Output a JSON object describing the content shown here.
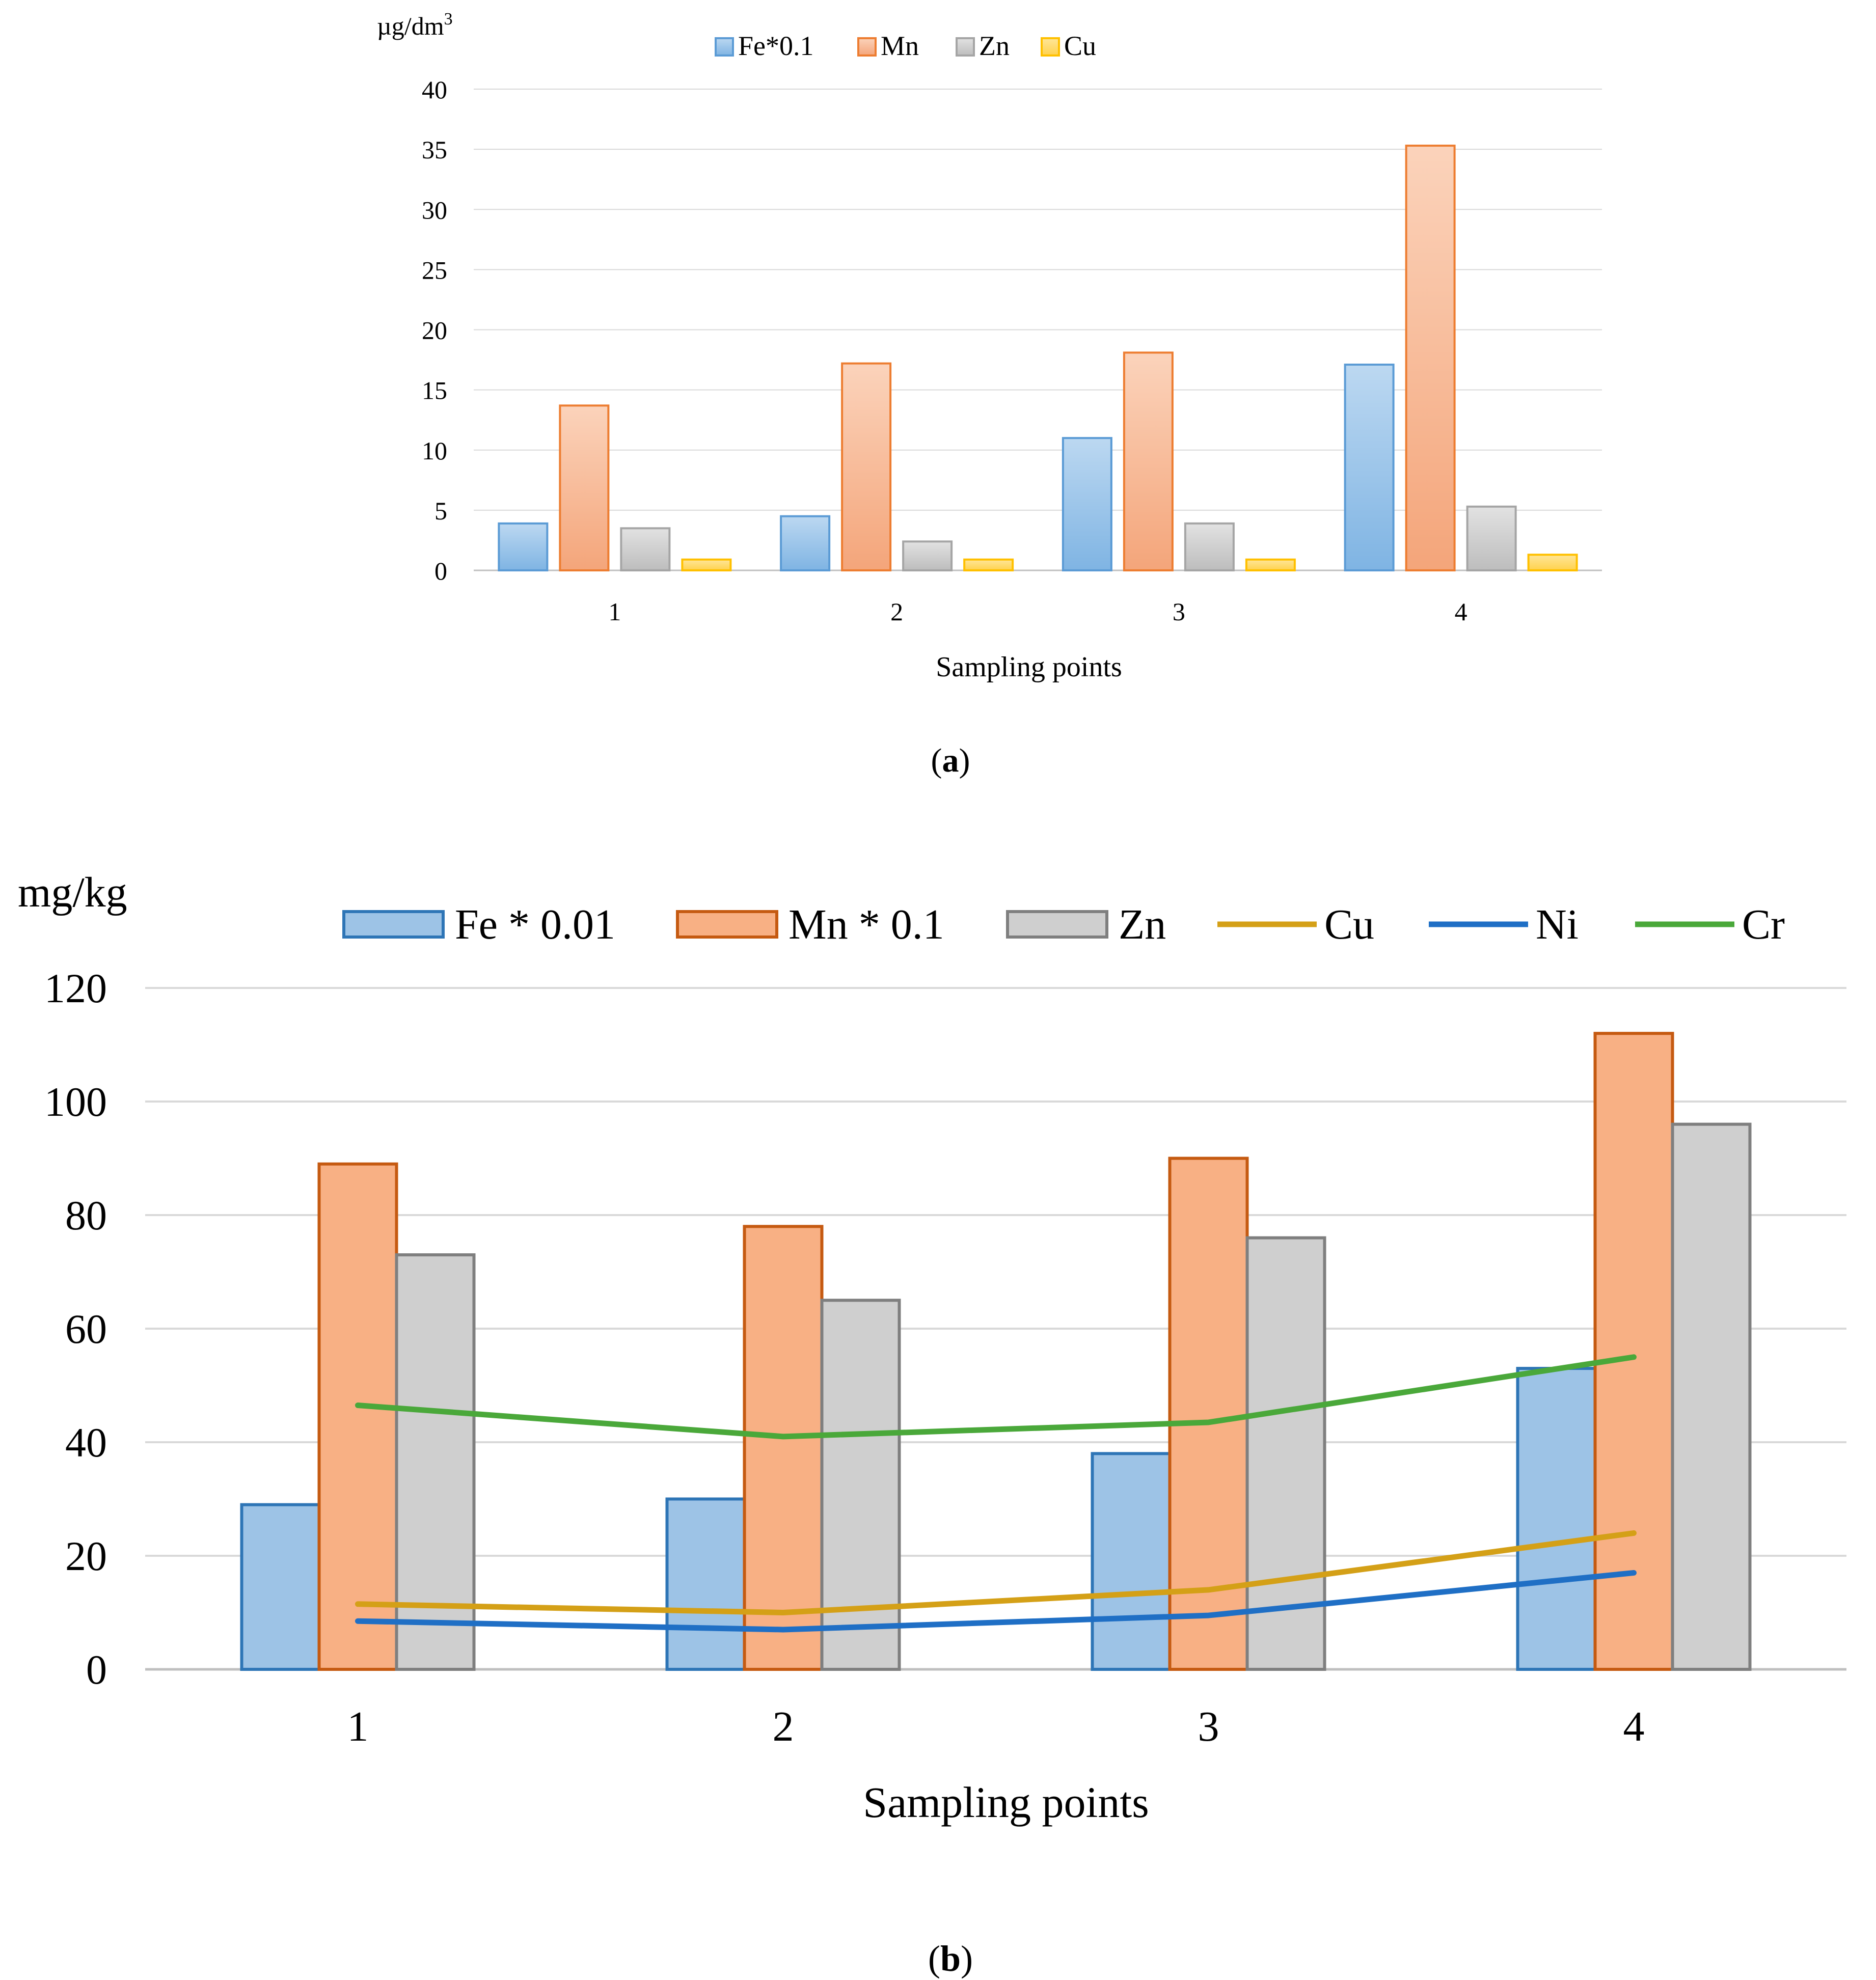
{
  "panels": [
    {
      "caption_letter": "a",
      "colors": {
        "Fe*0.1": "#5b9bd5",
        "Mn": "#ed7d31",
        "Zn": "#a5a5a5",
        "Cu": "#ffc000"
      }
    },
    {
      "caption_letter": "b",
      "colors": {
        "Fe * 0.01": "#2e75b6",
        "Mn * 0.1": "#c55a11",
        "Zn": "#7f7f7f",
        "Cu": "#d4a017",
        "Ni": "#1f6fc5",
        "Cr": "#4aa83a"
      }
    }
  ],
  "chart_data": [
    {
      "type": "bar",
      "ylabel": "µg/dm",
      "ylabel_superscript": "3",
      "xlabel": "Sampling points",
      "categories": [
        "1",
        "2",
        "3",
        "4"
      ],
      "ylim": [
        0,
        40
      ],
      "yticks": [
        0,
        5,
        10,
        15,
        20,
        25,
        30,
        35,
        40
      ],
      "grid": true,
      "legend": "top",
      "series": [
        {
          "name": "Fe*0.1",
          "values": [
            3.9,
            4.5,
            11.0,
            17.1
          ]
        },
        {
          "name": "Mn",
          "values": [
            13.7,
            17.2,
            18.1,
            35.3
          ]
        },
        {
          "name": "Zn",
          "values": [
            3.5,
            2.4,
            3.9,
            5.3
          ]
        },
        {
          "name": "Cu",
          "values": [
            0.9,
            0.9,
            0.9,
            1.3
          ]
        }
      ]
    },
    {
      "type": "bar",
      "ylabel": "mg/kg",
      "xlabel": "Sampling points",
      "categories": [
        "1",
        "2",
        "3",
        "4"
      ],
      "ylim": [
        0,
        120
      ],
      "yticks": [
        0,
        20,
        40,
        60,
        80,
        100,
        120
      ],
      "grid": true,
      "legend": "top",
      "series": [
        {
          "name": "Fe * 0.01",
          "kind": "bar",
          "values": [
            29,
            30,
            38,
            53
          ]
        },
        {
          "name": "Mn * 0.1",
          "kind": "bar",
          "values": [
            89,
            78,
            90,
            112
          ]
        },
        {
          "name": "Zn",
          "kind": "bar",
          "values": [
            73,
            65,
            76,
            96
          ]
        },
        {
          "name": "Cu",
          "kind": "line",
          "values": [
            11.5,
            10,
            14,
            24
          ]
        },
        {
          "name": "Ni",
          "kind": "line",
          "values": [
            8.5,
            7,
            9.5,
            17
          ]
        },
        {
          "name": "Cr",
          "kind": "line",
          "values": [
            46.5,
            41,
            43.5,
            55
          ]
        }
      ]
    }
  ]
}
